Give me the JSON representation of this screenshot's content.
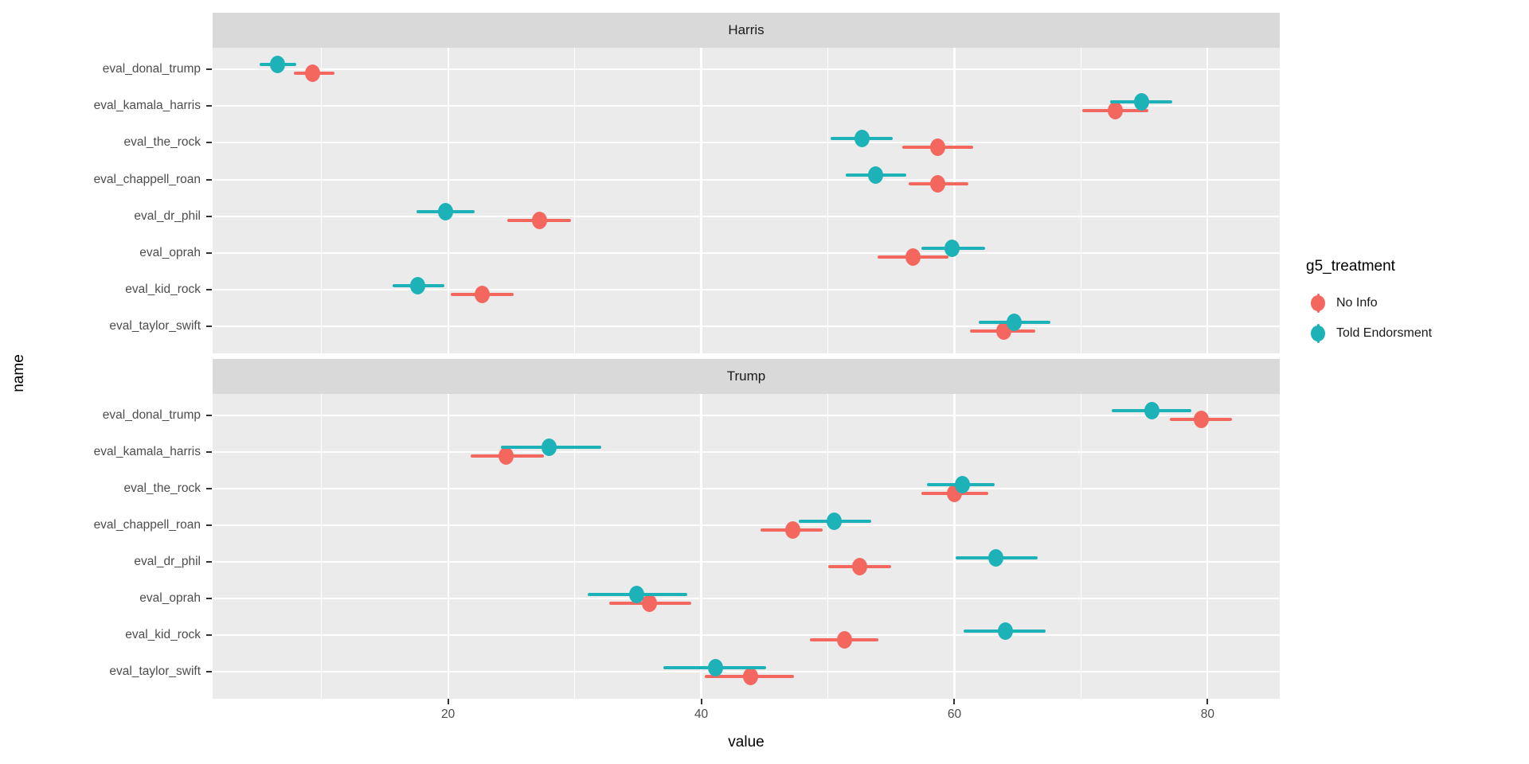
{
  "chart_data": {
    "type": "pointrange",
    "title": "",
    "xlabel": "value",
    "ylabel": "name",
    "facets": [
      "Harris",
      "Trump"
    ],
    "categories": [
      "eval_donal_trump",
      "eval_kamala_harris",
      "eval_the_rock",
      "eval_chappell_roan",
      "eval_dr_phil",
      "eval_oprah",
      "eval_kid_rock",
      "eval_taylor_swift"
    ],
    "x_major_ticks": [
      20,
      40,
      60,
      80
    ],
    "x_minor_gridlines": [
      10,
      30,
      50,
      70
    ],
    "xlim": [
      1.4,
      85.7
    ],
    "grid": "on",
    "legend_position": "right",
    "legend_title": "g5_treatment",
    "panel_bg": "#EBEBEB",
    "strip_bg": "#D9D9D9",
    "series": [
      {
        "name": "No Info",
        "color": "#F4675F",
        "data": {
          "Harris": [
            {
              "v": 9.3,
              "lo": 7.8,
              "hi": 11.0
            },
            {
              "v": 72.7,
              "lo": 70.1,
              "hi": 75.3
            },
            {
              "v": 58.7,
              "lo": 55.9,
              "hi": 61.5
            },
            {
              "v": 58.7,
              "lo": 56.4,
              "hi": 61.1
            },
            {
              "v": 27.2,
              "lo": 24.7,
              "hi": 29.7
            },
            {
              "v": 56.7,
              "lo": 53.9,
              "hi": 59.5
            },
            {
              "v": 22.7,
              "lo": 20.2,
              "hi": 25.2
            },
            {
              "v": 63.9,
              "lo": 61.2,
              "hi": 66.4
            }
          ],
          "Trump": [
            {
              "v": 79.5,
              "lo": 77.0,
              "hi": 81.9
            },
            {
              "v": 24.6,
              "lo": 21.8,
              "hi": 27.6
            },
            {
              "v": 60.0,
              "lo": 57.4,
              "hi": 62.7
            },
            {
              "v": 47.2,
              "lo": 44.7,
              "hi": 49.6
            },
            {
              "v": 52.5,
              "lo": 50.0,
              "hi": 55.0
            },
            {
              "v": 35.9,
              "lo": 32.7,
              "hi": 39.2
            },
            {
              "v": 51.3,
              "lo": 48.6,
              "hi": 54.0
            },
            {
              "v": 43.9,
              "lo": 40.3,
              "hi": 47.3
            }
          ]
        }
      },
      {
        "name": "Told Endorsment",
        "color": "#1CB2B8",
        "data": {
          "Harris": [
            {
              "v": 6.5,
              "lo": 5.1,
              "hi": 8.0
            },
            {
              "v": 74.8,
              "lo": 72.3,
              "hi": 77.2
            },
            {
              "v": 52.7,
              "lo": 50.2,
              "hi": 55.1
            },
            {
              "v": 53.8,
              "lo": 51.4,
              "hi": 56.2
            },
            {
              "v": 19.8,
              "lo": 17.5,
              "hi": 22.1
            },
            {
              "v": 59.8,
              "lo": 57.4,
              "hi": 62.4
            },
            {
              "v": 17.6,
              "lo": 15.6,
              "hi": 19.7
            },
            {
              "v": 64.7,
              "lo": 61.9,
              "hi": 67.6
            }
          ],
          "Trump": [
            {
              "v": 75.6,
              "lo": 72.4,
              "hi": 78.7
            },
            {
              "v": 28.0,
              "lo": 24.2,
              "hi": 32.1
            },
            {
              "v": 60.6,
              "lo": 57.8,
              "hi": 63.2
            },
            {
              "v": 50.5,
              "lo": 47.7,
              "hi": 53.4
            },
            {
              "v": 63.3,
              "lo": 60.1,
              "hi": 66.6
            },
            {
              "v": 34.9,
              "lo": 31.0,
              "hi": 38.9
            },
            {
              "v": 64.0,
              "lo": 60.7,
              "hi": 67.2
            },
            {
              "v": 41.1,
              "lo": 37.0,
              "hi": 45.1
            }
          ]
        }
      }
    ]
  }
}
